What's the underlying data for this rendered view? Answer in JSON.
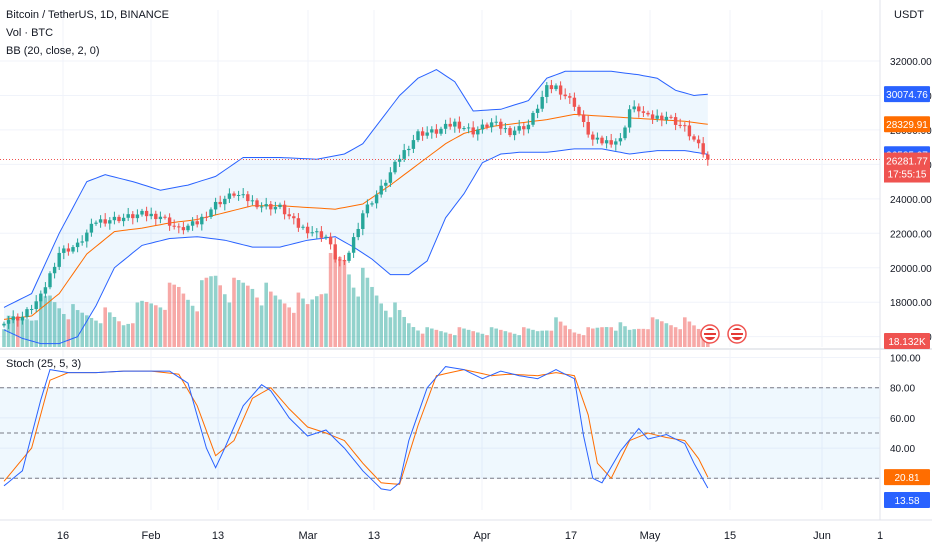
{
  "header": {
    "symbol": "Bitcoin / TetherUS, 1D, BINANCE",
    "volume_label": "Vol · BTC",
    "bb_label": "BB (20, close, 2, 0)",
    "stoch_label": "Stoch (25, 5, 3)",
    "unit": "USDT"
  },
  "colors": {
    "up": "#26a69a",
    "down": "#ef5350",
    "bb": "#2962ff",
    "basis": "#ff6d00",
    "stoch_k": "#2962ff",
    "stoch_d": "#ff6d00",
    "grid": "#f0f3fa"
  },
  "icons": [
    "us-flag-event-icon",
    "us-flag-event-icon"
  ],
  "chart_data": [
    {
      "type": "candlestick",
      "title": "Bitcoin / TetherUS, 1D, BINANCE",
      "y_ticks": [
        "32000.00",
        "30000.00",
        "28000.00",
        "26000.00",
        "24000.00",
        "22000.00",
        "20000.00",
        "18000.00",
        "16000.00"
      ],
      "x_ticks": [
        "16",
        "Feb",
        "13",
        "Mar",
        "13",
        "Apr",
        "17",
        "May",
        "15",
        "Jun",
        "1"
      ],
      "ylim": [
        15400,
        33800
      ],
      "price_labels": [
        {
          "value": "30074.76",
          "role": "bb_upper"
        },
        {
          "value": "28329.91",
          "role": "bb_basis"
        },
        {
          "value": "26585.07",
          "role": "bb_lower"
        },
        {
          "value": "26281.77",
          "role": "last_price"
        },
        {
          "value": "17:55:15",
          "role": "countdown"
        }
      ],
      "volume_label": "18.132K",
      "key_points": [
        [
          0,
          16950
        ],
        [
          4,
          17150
        ],
        [
          8,
          18300
        ],
        [
          12,
          20900
        ],
        [
          16,
          21300
        ],
        [
          20,
          22700
        ],
        [
          26,
          22900
        ],
        [
          30,
          23100
        ],
        [
          34,
          23000
        ],
        [
          38,
          22200
        ],
        [
          42,
          22600
        ],
        [
          46,
          23700
        ],
        [
          50,
          24300
        ],
        [
          56,
          23600
        ],
        [
          60,
          23500
        ],
        [
          64,
          22400
        ],
        [
          70,
          21800
        ],
        [
          72,
          20600
        ],
        [
          74,
          20200
        ],
        [
          78,
          23200
        ],
        [
          82,
          24600
        ],
        [
          86,
          26400
        ],
        [
          90,
          27800
        ],
        [
          94,
          27900
        ],
        [
          98,
          28400
        ],
        [
          102,
          27900
        ],
        [
          106,
          28400
        ],
        [
          110,
          27900
        ],
        [
          114,
          28300
        ],
        [
          118,
          30400
        ],
        [
          120,
          30500
        ],
        [
          124,
          29500
        ],
        [
          126,
          28300
        ],
        [
          128,
          27400
        ],
        [
          130,
          27300
        ],
        [
          134,
          27400
        ],
        [
          136,
          29200
        ],
        [
          138,
          29200
        ],
        [
          140,
          28700
        ],
        [
          144,
          28800
        ],
        [
          148,
          28100
        ],
        [
          150,
          27400
        ],
        [
          153,
          26282
        ]
      ],
      "volume_key_points": [
        [
          0,
          3
        ],
        [
          6,
          4
        ],
        [
          10,
          6
        ],
        [
          16,
          4
        ],
        [
          22,
          4
        ],
        [
          26,
          3
        ],
        [
          30,
          5
        ],
        [
          34,
          6
        ],
        [
          38,
          7
        ],
        [
          42,
          6
        ],
        [
          46,
          9
        ],
        [
          50,
          7
        ],
        [
          54,
          8
        ],
        [
          58,
          6
        ],
        [
          62,
          6
        ],
        [
          66,
          5
        ],
        [
          70,
          9
        ],
        [
          74,
          11
        ],
        [
          76,
          9
        ],
        [
          80,
          7
        ],
        [
          84,
          5
        ],
        [
          88,
          3
        ],
        [
          92,
          2
        ],
        [
          96,
          2
        ],
        [
          104,
          2
        ],
        [
          110,
          2
        ],
        [
          116,
          2
        ],
        [
          120,
          3
        ],
        [
          124,
          2
        ],
        [
          128,
          2
        ],
        [
          132,
          3
        ],
        [
          136,
          2
        ],
        [
          140,
          3
        ],
        [
          144,
          3
        ],
        [
          148,
          3
        ],
        [
          153,
          1.8
        ]
      ],
      "bb_upper_key_points": [
        [
          0,
          17700
        ],
        [
          6,
          18500
        ],
        [
          12,
          22000
        ],
        [
          18,
          25000
        ],
        [
          22,
          25400
        ],
        [
          28,
          25000
        ],
        [
          34,
          24500
        ],
        [
          40,
          24800
        ],
        [
          46,
          25300
        ],
        [
          52,
          26400
        ],
        [
          60,
          26400
        ],
        [
          68,
          26300
        ],
        [
          74,
          26600
        ],
        [
          78,
          27200
        ],
        [
          82,
          28600
        ],
        [
          86,
          30000
        ],
        [
          90,
          31000
        ],
        [
          94,
          31500
        ],
        [
          98,
          30800
        ],
        [
          102,
          29100
        ],
        [
          108,
          29200
        ],
        [
          114,
          29700
        ],
        [
          118,
          31000
        ],
        [
          122,
          31400
        ],
        [
          126,
          31400
        ],
        [
          132,
          31400
        ],
        [
          138,
          31200
        ],
        [
          142,
          31000
        ],
        [
          146,
          30300
        ],
        [
          150,
          30000
        ],
        [
          153,
          30075
        ]
      ],
      "bb_lower_key_points": [
        [
          0,
          16400
        ],
        [
          4,
          15900
        ],
        [
          8,
          15600
        ],
        [
          12,
          15600
        ],
        [
          16,
          16000
        ],
        [
          20,
          17800
        ],
        [
          24,
          20000
        ],
        [
          30,
          21300
        ],
        [
          36,
          21700
        ],
        [
          42,
          21800
        ],
        [
          48,
          21600
        ],
        [
          54,
          21200
        ],
        [
          60,
          21200
        ],
        [
          66,
          21600
        ],
        [
          72,
          21800
        ],
        [
          76,
          21200
        ],
        [
          80,
          20500
        ],
        [
          84,
          19600
        ],
        [
          88,
          19600
        ],
        [
          92,
          20400
        ],
        [
          96,
          22900
        ],
        [
          100,
          24300
        ],
        [
          104,
          26100
        ],
        [
          108,
          26600
        ],
        [
          112,
          26700
        ],
        [
          118,
          26700
        ],
        [
          124,
          26900
        ],
        [
          130,
          26900
        ],
        [
          136,
          26600
        ],
        [
          142,
          26800
        ],
        [
          148,
          26800
        ],
        [
          153,
          26585
        ]
      ],
      "bb_basis_key_points": [
        [
          0,
          17000
        ],
        [
          6,
          17200
        ],
        [
          12,
          18500
        ],
        [
          18,
          20800
        ],
        [
          24,
          22100
        ],
        [
          30,
          22300
        ],
        [
          36,
          22600
        ],
        [
          42,
          22800
        ],
        [
          48,
          23200
        ],
        [
          54,
          23600
        ],
        [
          60,
          23600
        ],
        [
          66,
          23500
        ],
        [
          72,
          23400
        ],
        [
          78,
          23700
        ],
        [
          84,
          24800
        ],
        [
          90,
          26000
        ],
        [
          96,
          27200
        ],
        [
          100,
          27800
        ],
        [
          106,
          28200
        ],
        [
          112,
          28400
        ],
        [
          118,
          28600
        ],
        [
          124,
          28900
        ],
        [
          130,
          28800
        ],
        [
          136,
          28700
        ],
        [
          142,
          28600
        ],
        [
          148,
          28500
        ],
        [
          153,
          28330
        ]
      ]
    },
    {
      "type": "line",
      "title": "Stoch (25, 5, 3)",
      "y_ticks": [
        "100.00",
        "80.00",
        "60.00",
        "40.00"
      ],
      "levels": [
        80,
        50,
        20
      ],
      "ylim": [
        -1,
        105
      ],
      "series": [
        {
          "name": "%K",
          "value_label": "13.58",
          "key_points": [
            [
              0,
              15
            ],
            [
              4,
              25
            ],
            [
              8,
              72
            ],
            [
              10,
              92
            ],
            [
              14,
              90
            ],
            [
              20,
              90
            ],
            [
              26,
              91
            ],
            [
              32,
              91
            ],
            [
              36,
              91
            ],
            [
              40,
              83
            ],
            [
              44,
              40
            ],
            [
              46,
              27
            ],
            [
              48,
              40
            ],
            [
              52,
              68
            ],
            [
              56,
              82
            ],
            [
              58,
              78
            ],
            [
              62,
              60
            ],
            [
              66,
              48
            ],
            [
              70,
              52
            ],
            [
              74,
              40
            ],
            [
              78,
              25
            ],
            [
              82,
              13
            ],
            [
              84,
              12
            ],
            [
              86,
              17
            ],
            [
              88,
              45
            ],
            [
              92,
              80
            ],
            [
              96,
              94
            ],
            [
              100,
              92
            ],
            [
              104,
              86
            ],
            [
              108,
              91
            ],
            [
              112,
              88
            ],
            [
              116,
              86
            ],
            [
              120,
              92
            ],
            [
              124,
              86
            ],
            [
              126,
              48
            ],
            [
              128,
              20
            ],
            [
              130,
              17
            ],
            [
              134,
              38
            ],
            [
              138,
              53
            ],
            [
              140,
              46
            ],
            [
              144,
              49
            ],
            [
              148,
              43
            ],
            [
              150,
              30
            ],
            [
              153,
              13.58
            ]
          ]
        },
        {
          "name": "%D",
          "value_label": "20.81",
          "key_points": [
            [
              0,
              18
            ],
            [
              6,
              40
            ],
            [
              10,
              85
            ],
            [
              14,
              90
            ],
            [
              20,
              90
            ],
            [
              26,
              91
            ],
            [
              32,
              91
            ],
            [
              38,
              89
            ],
            [
              42,
              68
            ],
            [
              46,
              35
            ],
            [
              50,
              45
            ],
            [
              54,
              73
            ],
            [
              58,
              80
            ],
            [
              62,
              66
            ],
            [
              66,
              54
            ],
            [
              70,
              50
            ],
            [
              74,
              45
            ],
            [
              78,
              30
            ],
            [
              82,
              17
            ],
            [
              86,
              16
            ],
            [
              90,
              55
            ],
            [
              94,
              88
            ],
            [
              100,
              92
            ],
            [
              106,
              88
            ],
            [
              110,
              89
            ],
            [
              116,
              88
            ],
            [
              120,
              90
            ],
            [
              124,
              88
            ],
            [
              127,
              62
            ],
            [
              129,
              30
            ],
            [
              132,
              20
            ],
            [
              136,
              45
            ],
            [
              140,
              50
            ],
            [
              144,
              47
            ],
            [
              148,
              45
            ],
            [
              151,
              33
            ],
            [
              153,
              20.81
            ]
          ]
        }
      ]
    }
  ]
}
